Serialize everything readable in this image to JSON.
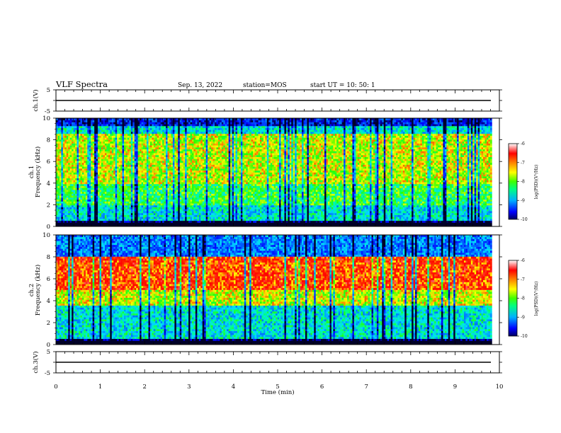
{
  "header": {
    "title": "VLF Spectra",
    "date": "Sep. 13, 2022",
    "station": "station=MOS",
    "start": "start  UT =   10: 50: 1"
  },
  "chart_data": [
    {
      "type": "line",
      "panel": "ch1-waveform",
      "ylabel": "ch.1(V)",
      "ylim": [
        -5,
        5
      ],
      "yticks": [
        "5",
        "-5"
      ],
      "x": [
        0,
        10
      ],
      "series_value": 0
    },
    {
      "type": "heatmap",
      "panel": "ch1-spectrogram",
      "ylabel_line1": "ch.1",
      "ylabel_line2": "Frequency (kHz)",
      "ylim": [
        0,
        10
      ],
      "yticks": [
        "0",
        "2",
        "4",
        "6",
        "8",
        "10"
      ],
      "xlim": [
        0,
        10
      ],
      "data_extent_min": 9.83,
      "colorbar": {
        "label": "log(PSD)(V²/Hz)",
        "range": [
          -10,
          -6
        ],
        "ticks": [
          "-6",
          "-7",
          "-8",
          "-9",
          "-10"
        ]
      },
      "dominant_log_psd_by_band": [
        {
          "band_khz": [
            0,
            0.5
          ],
          "value": -10
        },
        {
          "band_khz": [
            0.5,
            2
          ],
          "value": -8.5
        },
        {
          "band_khz": [
            2,
            4
          ],
          "value": -8
        },
        {
          "band_khz": [
            4,
            8.5
          ],
          "value": -7.5
        },
        {
          "band_khz": [
            8.5,
            9.3
          ],
          "value": -8.5
        },
        {
          "band_khz": [
            9.3,
            10
          ],
          "value": -9.5
        }
      ]
    },
    {
      "type": "heatmap",
      "panel": "ch2-spectrogram",
      "ylabel_line1": "ch.2",
      "ylabel_line2": "Frequency (kHz)",
      "ylim": [
        0,
        10
      ],
      "yticks": [
        "0",
        "2",
        "4",
        "6",
        "8",
        "10"
      ],
      "xlim": [
        0,
        10
      ],
      "data_extent_min": 9.83,
      "colorbar": {
        "label": "log(PSD)(V²/Hz)",
        "range": [
          -10,
          -6
        ],
        "ticks": [
          "-6",
          "-7",
          "-8",
          "-9",
          "-10"
        ]
      },
      "dominant_log_psd_by_band": [
        {
          "band_khz": [
            0,
            0.5
          ],
          "value": -10
        },
        {
          "band_khz": [
            0.5,
            3.5
          ],
          "value": -8.5
        },
        {
          "band_khz": [
            3.5,
            5
          ],
          "value": -7.5
        },
        {
          "band_khz": [
            5,
            8
          ],
          "value": -6.8
        },
        {
          "band_khz": [
            8,
            10
          ],
          "value": -9
        }
      ]
    },
    {
      "type": "line",
      "panel": "ch3-waveform",
      "ylabel": "ch.3(V)",
      "ylim": [
        -5,
        5
      ],
      "yticks": [
        "5",
        "-5"
      ],
      "x": [
        0,
        10
      ],
      "series_value": 0
    }
  ],
  "xaxis": {
    "label": "Time (min)",
    "ticks": [
      "0",
      "1",
      "2",
      "3",
      "4",
      "5",
      "6",
      "7",
      "8",
      "9",
      "10"
    ]
  },
  "colormap": [
    "#1a0080",
    "#0000ff",
    "#0050ff",
    "#00c8ff",
    "#00ff90",
    "#20ff20",
    "#a0ff00",
    "#ffff00",
    "#ffa000",
    "#ff2000",
    "#ff0000",
    "#ffffff"
  ]
}
